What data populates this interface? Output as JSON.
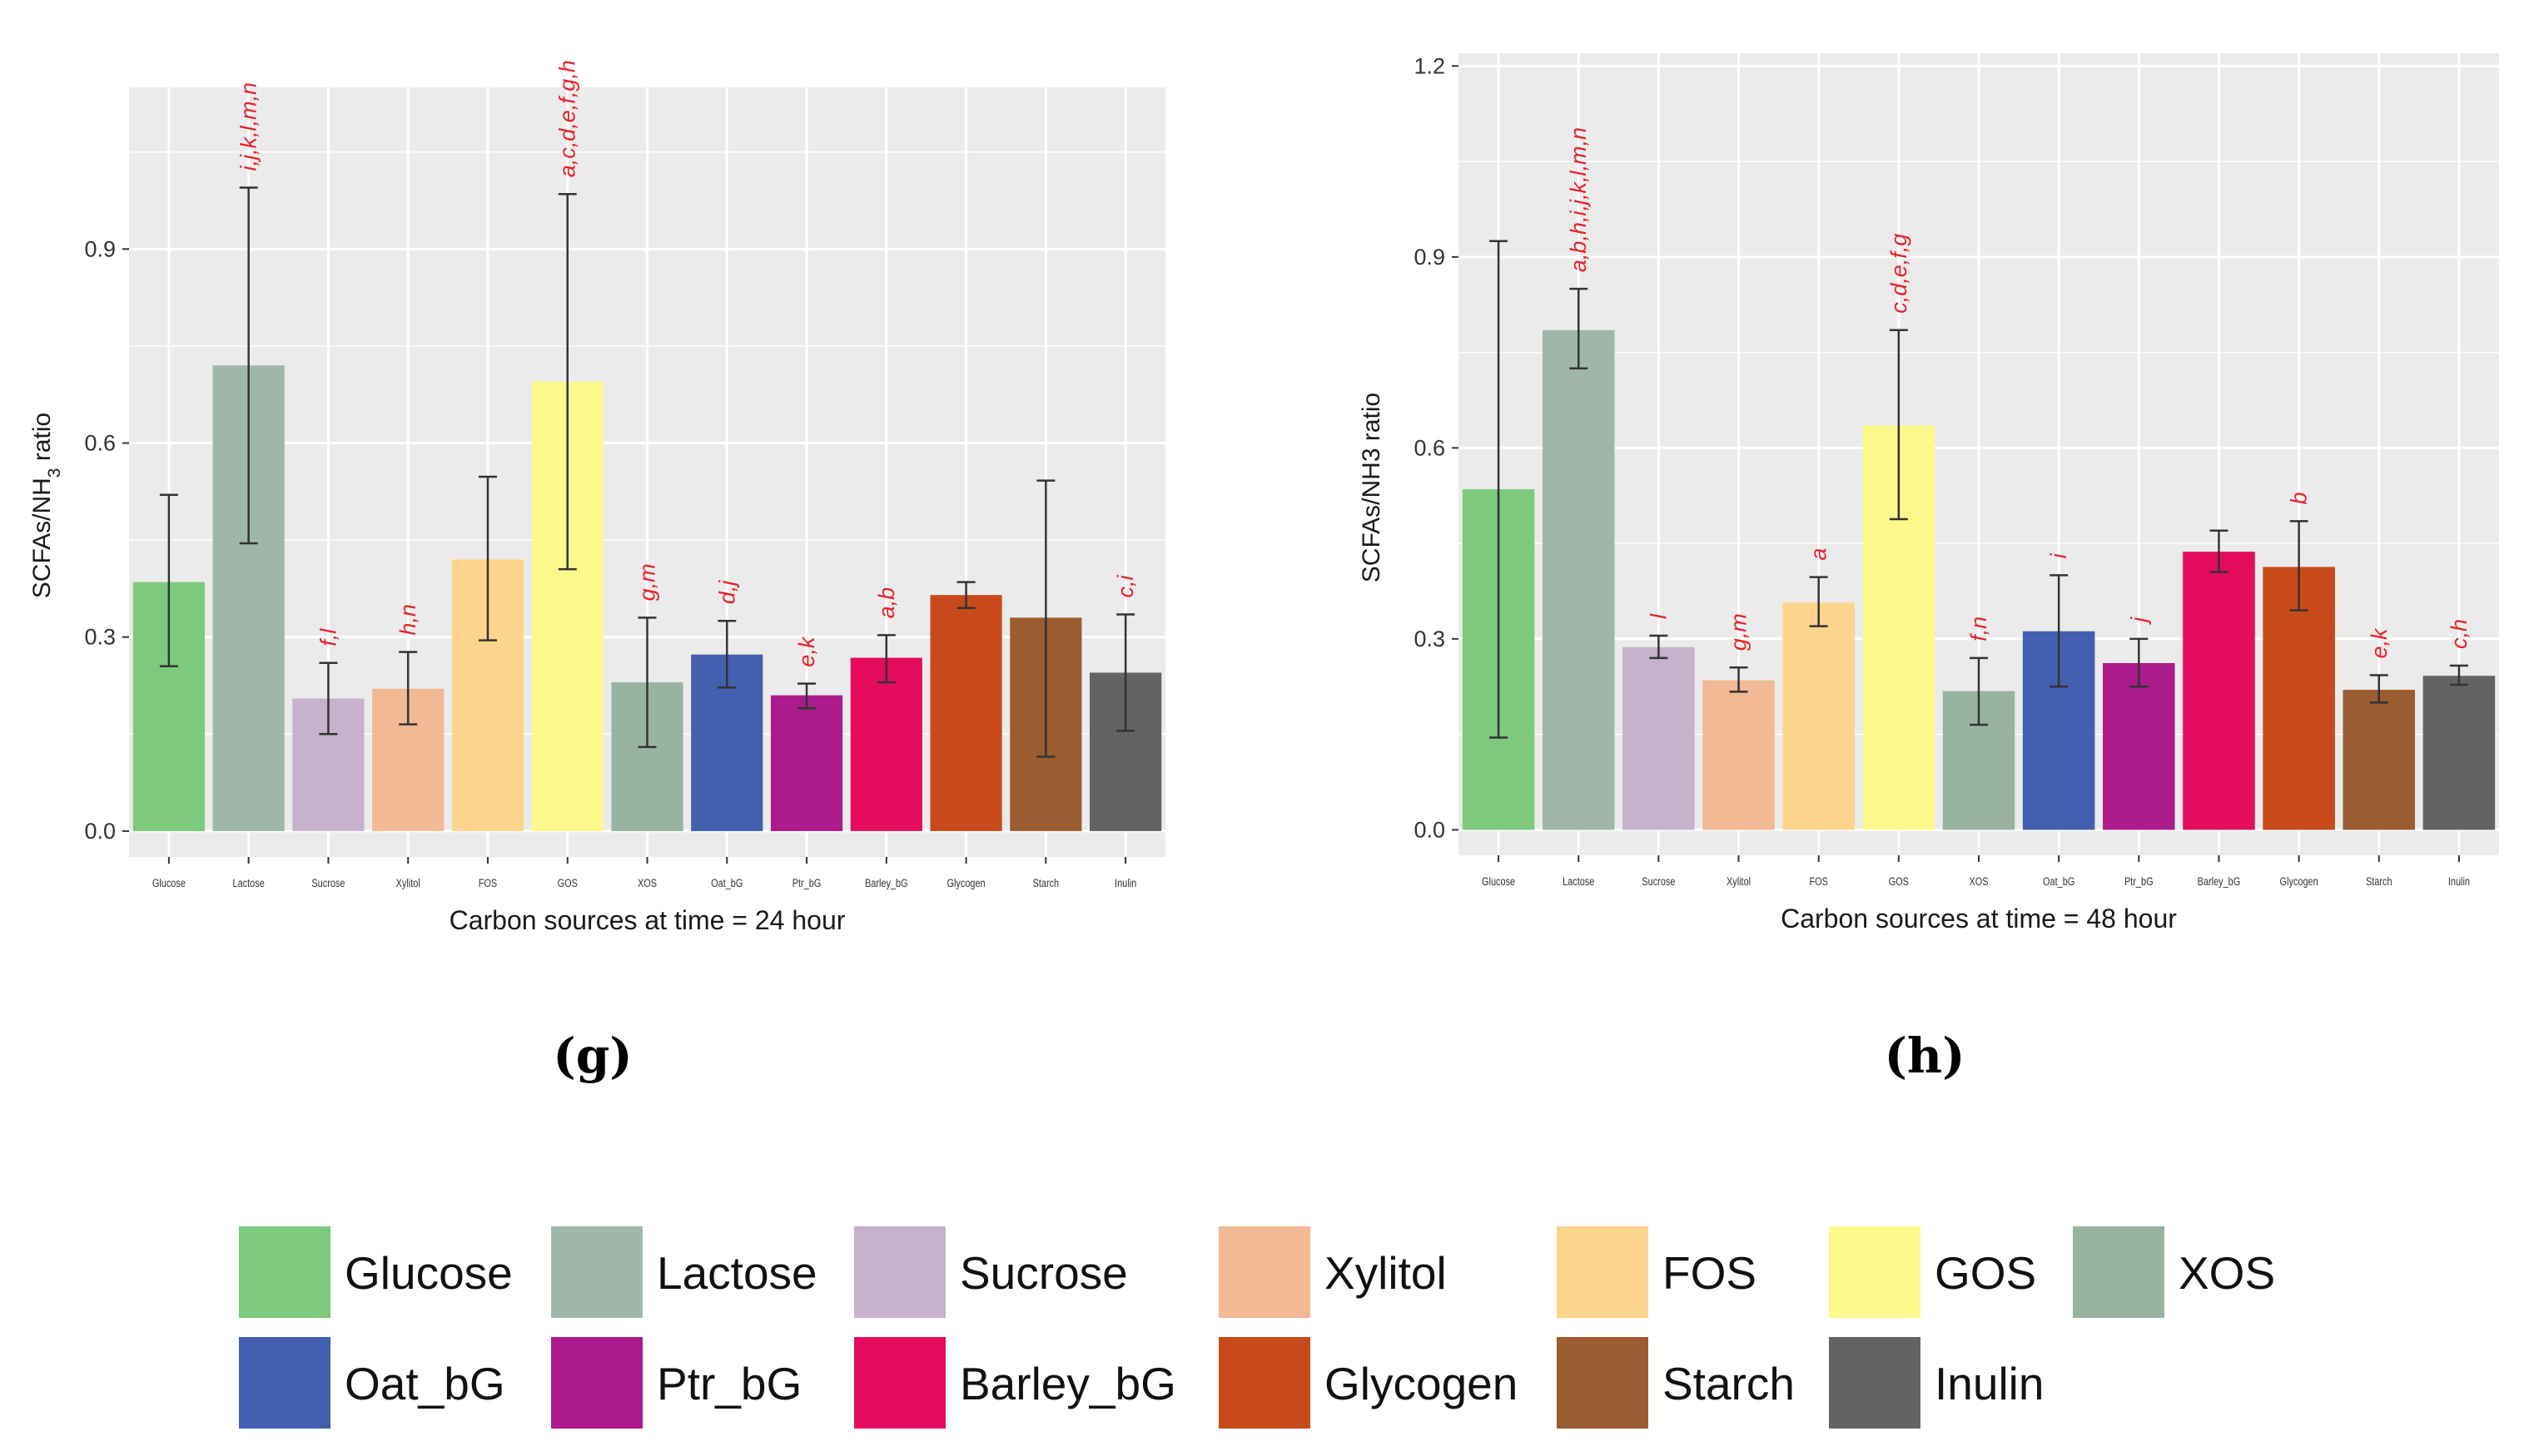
{
  "chart_data": [
    {
      "type": "bar",
      "panel_label": "(g)",
      "xlabel": "Carbon sources at time = 24 hour",
      "ylabel_parts": [
        "SCFAs/NH",
        "3",
        " ratio"
      ],
      "ylim": [
        -0.04,
        1.15
      ],
      "yticks": [
        "0.0",
        "0.3",
        "0.6",
        "0.9"
      ],
      "ytick_values": [
        0.0,
        0.3,
        0.6,
        0.9
      ],
      "categories": [
        "Glucose",
        "Lactose",
        "Sucrose",
        "Xylitol",
        "FOS",
        "GOS",
        "XOS",
        "Oat_bG",
        "Ptr_bG",
        "Barley_bG",
        "Glycogen",
        "Starch",
        "Inulin"
      ],
      "values": [
        0.385,
        0.72,
        0.205,
        0.22,
        0.42,
        0.695,
        0.23,
        0.273,
        0.21,
        0.268,
        0.365,
        0.33,
        0.245
      ],
      "err_low": [
        0.255,
        0.445,
        0.15,
        0.165,
        0.295,
        0.405,
        0.13,
        0.222,
        0.19,
        0.23,
        0.345,
        0.115,
        0.155
      ],
      "err_high": [
        0.52,
        0.995,
        0.26,
        0.277,
        0.548,
        0.985,
        0.33,
        0.325,
        0.228,
        0.303,
        0.385,
        0.542,
        0.335
      ],
      "annotations": [
        "",
        "i,j,k,l,m,n",
        "f,l",
        "h,n",
        "",
        "a,c,d,e,f,g,h",
        "g,m",
        "d,j",
        "e,k",
        "a,b",
        "",
        "",
        "c,i"
      ]
    },
    {
      "type": "bar",
      "panel_label": "(h)",
      "xlabel": "Carbon sources at time = 48 hour",
      "ylabel_parts": [
        "SCFAs/NH3 ratio",
        "",
        ""
      ],
      "ylim": [
        -0.04,
        1.22
      ],
      "yticks": [
        "0.0",
        "0.3",
        "0.6",
        "0.9",
        "1.2"
      ],
      "ytick_values": [
        0.0,
        0.3,
        0.6,
        0.9,
        1.2
      ],
      "categories": [
        "Glucose",
        "Lactose",
        "Sucrose",
        "Xylitol",
        "FOS",
        "GOS",
        "XOS",
        "Oat_bG",
        "Ptr_bG",
        "Barley_bG",
        "Glycogen",
        "Starch",
        "Inulin"
      ],
      "values": [
        0.535,
        0.785,
        0.287,
        0.235,
        0.357,
        0.635,
        0.218,
        0.312,
        0.262,
        0.437,
        0.413,
        0.22,
        0.242
      ],
      "err_low": [
        0.145,
        0.725,
        0.27,
        0.217,
        0.32,
        0.488,
        0.165,
        0.225,
        0.225,
        0.405,
        0.345,
        0.2,
        0.228
      ],
      "err_high": [
        0.925,
        0.85,
        0.305,
        0.255,
        0.397,
        0.785,
        0.27,
        0.4,
        0.3,
        0.47,
        0.485,
        0.243,
        0.258
      ],
      "annotations": [
        "",
        "a,b,h,i,j,k,l,m,n",
        "l",
        "g,m",
        "a",
        "c,d,e,f,g",
        "f,n",
        "i",
        "j",
        "",
        "b",
        "e,k",
        "c,h"
      ]
    }
  ],
  "legend": {
    "items": [
      {
        "label": "Glucose",
        "color": "#7dc97d"
      },
      {
        "label": "Lactose",
        "color": "#9fb7a9"
      },
      {
        "label": "Sucrose",
        "color": "#c7b1cc"
      },
      {
        "label": "Xylitol",
        "color": "#f1b994"
      },
      {
        "label": "FOS",
        "color": "#fdd48b"
      },
      {
        "label": "GOS",
        "color": "#fdf88c"
      },
      {
        "label": "XOS",
        "color": "#98b4a0"
      },
      {
        "label": "Oat_bG",
        "color": "#4360ae"
      },
      {
        "label": "Ptr_bG",
        "color": "#ab1b8c"
      },
      {
        "label": "Barley_bG",
        "color": "#e50c5d"
      },
      {
        "label": "Glycogen",
        "color": "#c84a1c"
      },
      {
        "label": "Starch",
        "color": "#9a5c30"
      },
      {
        "label": "Inulin",
        "color": "#636363"
      }
    ]
  },
  "colors": {
    "panel_bg": "#ebebeb",
    "grid": "#ffffff",
    "annotation": "#e8212a",
    "axis_text": "#333333",
    "errorbar": "#333333"
  }
}
